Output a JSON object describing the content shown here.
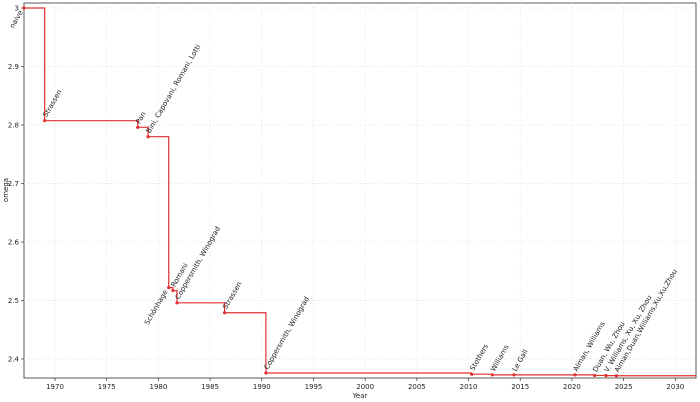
{
  "chart_data": {
    "type": "step",
    "x_label": "Year",
    "y_label": "omega",
    "color": "#e03030",
    "grid": true,
    "xlim": [
      1967,
      2032
    ],
    "xticks": [
      1970,
      1975,
      1980,
      1985,
      1990,
      1995,
      2000,
      2005,
      2010,
      2015,
      2020,
      2025,
      2030
    ],
    "ylim": [
      2.3675,
      3
    ],
    "yticks": [
      2.4,
      2.5,
      2.6,
      2.7,
      2.8,
      2.9,
      3
    ],
    "points": [
      {
        "label": "naive",
        "x": 1967,
        "y": 3,
        "label_color": "#222"
      },
      {
        "label": "Strassen",
        "x": 1969,
        "y": 2.8074,
        "label_color": "#222"
      },
      {
        "label": "Pan",
        "x": 1978,
        "y": 2.796,
        "label_color": "#222"
      },
      {
        "label": "Bini, Capovani, Romani, Lotti",
        "x": 1979,
        "y": 2.78,
        "label_color": "#222"
      },
      {
        "label": "Schönhage",
        "x": 1981,
        "y": 2.522,
        "label_color": "#222"
      },
      {
        "label": "Romani",
        "x": 1981.4,
        "y": 2.517,
        "label_color": "#222"
      },
      {
        "label": "Coppersmith, Winograd",
        "x": 1981.8,
        "y": 2.496,
        "label_color": "#222"
      },
      {
        "label": "Strassen",
        "x": 1986.4,
        "y": 2.479,
        "label_color": "#222"
      },
      {
        "label": "Coppersmith, Winograd",
        "x": 1990.4,
        "y": 2.376,
        "label_color": "#222"
      },
      {
        "label": "Stothers",
        "x": 2010.3,
        "y": 2.374,
        "label_color": "#222"
      },
      {
        "label": "Williams",
        "x": 2012.3,
        "y": 2.3729,
        "label_color": "#222"
      },
      {
        "label": "Le Gall",
        "x": 2014.4,
        "y": 2.37286,
        "label_color": "#222"
      },
      {
        "label": "Alman, Williams",
        "x": 2020.3,
        "y": 2.37285,
        "label_color": "#222"
      },
      {
        "label": "Duan, Wu, Zhou",
        "x": 2022.2,
        "y": 2.37187,
        "label_color": "#999"
      },
      {
        "label": "V. Williams, Xu, Xu, Zhou",
        "x": 2023.3,
        "y": 2.37155,
        "label_color": "#999"
      },
      {
        "label": "Alman,Duan,Williams,Xu,Xu,Zhou",
        "x": 2024.3,
        "y": 2.37134,
        "label_color": "#999"
      }
    ]
  }
}
